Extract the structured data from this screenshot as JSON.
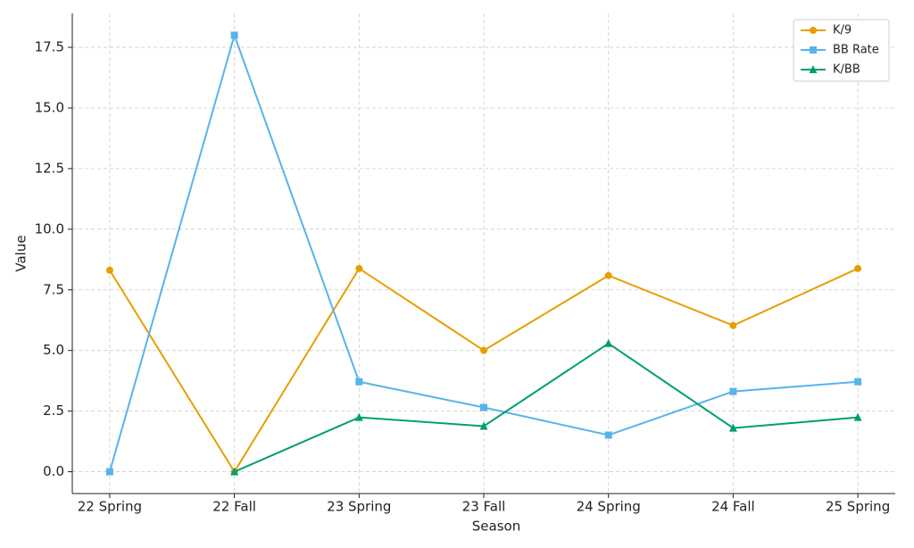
{
  "chart_data": {
    "type": "line",
    "xlabel": "Season",
    "ylabel": "Value",
    "categories": [
      "22 Spring",
      "22 Fall",
      "23 Spring",
      "23 Fall",
      "24 Spring",
      "24 Fall",
      "25 Spring"
    ],
    "series": [
      {
        "name": "K/9",
        "color": "#E69F00",
        "marker": "circle",
        "values": [
          8.31,
          0,
          8.38,
          5.0,
          8.09,
          6.03,
          8.38
        ]
      },
      {
        "name": "BB Rate",
        "color": "#56B4E9",
        "marker": "square",
        "values": [
          0,
          18.0,
          3.71,
          2.65,
          1.51,
          3.31,
          3.71
        ]
      },
      {
        "name": "K/BB",
        "color": "#009E73",
        "marker": "triangle",
        "values": [
          null,
          0,
          2.24,
          1.88,
          5.29,
          1.8,
          2.24
        ]
      }
    ],
    "ylim": [
      -0.9,
      18.9
    ],
    "yticks": [
      {
        "value": 0,
        "label": "0.0"
      },
      2.5,
      {
        "value": 5,
        "label": "5.0"
      },
      7.5,
      {
        "value": 10,
        "label": "10.0"
      },
      12.5,
      {
        "value": 15,
        "label": "15.0"
      },
      17.5
    ],
    "grid": true,
    "legend": "upper-right"
  }
}
